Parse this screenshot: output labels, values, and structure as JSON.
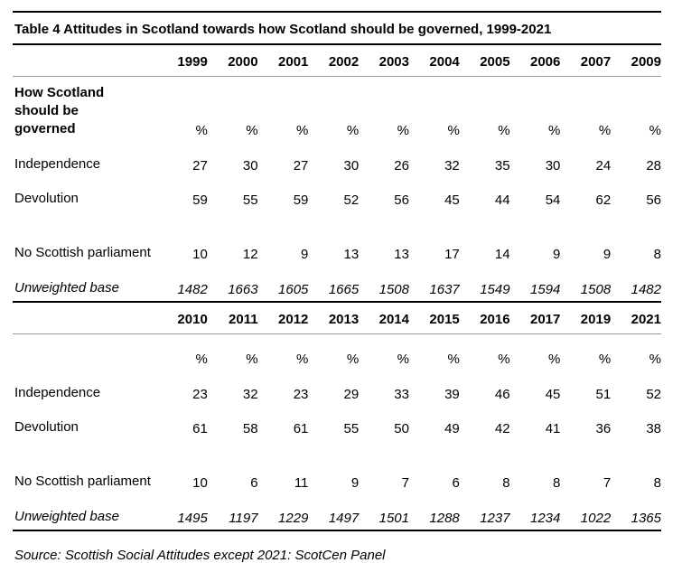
{
  "title": "Table 4 Attitudes in Scotland towards how Scotland should be governed, 1999-2021",
  "row_header_label": "How Scotland should be governed",
  "blocks": [
    {
      "years": [
        "1999",
        "2000",
        "2001",
        "2002",
        "2003",
        "2004",
        "2005",
        "2006",
        "2007",
        "2009"
      ],
      "percent_row": [
        "%",
        "%",
        "%",
        "%",
        "%",
        "%",
        "%",
        "%",
        "%",
        "%"
      ],
      "rows": [
        {
          "label": "Independence",
          "values": [
            "27",
            "30",
            "27",
            "30",
            "26",
            "32",
            "35",
            "30",
            "24",
            "28"
          ]
        },
        {
          "label": "Devolution",
          "values": [
            "59",
            "55",
            "59",
            "52",
            "56",
            "45",
            "44",
            "54",
            "62",
            "56"
          ]
        },
        {
          "label": "No Scottish parliament",
          "values": [
            "10",
            "12",
            "9",
            "13",
            "13",
            "17",
            "14",
            "9",
            "9",
            "8"
          ]
        }
      ],
      "base": {
        "label": "Unweighted base",
        "values": [
          "1482",
          "1663",
          "1605",
          "1665",
          "1508",
          "1637",
          "1549",
          "1594",
          "1508",
          "1482"
        ]
      }
    },
    {
      "years": [
        "2010",
        "2011",
        "2012",
        "2013",
        "2014",
        "2015",
        "2016",
        "2017",
        "2019",
        "2021"
      ],
      "percent_row": [
        "%",
        "%",
        "%",
        "%",
        "%",
        "%",
        "%",
        "%",
        "%",
        "%"
      ],
      "rows": [
        {
          "label": "Independence",
          "values": [
            "23",
            "32",
            "23",
            "29",
            "33",
            "39",
            "46",
            "45",
            "51",
            "52"
          ]
        },
        {
          "label": "Devolution",
          "values": [
            "61",
            "58",
            "61",
            "55",
            "50",
            "49",
            "42",
            "41",
            "36",
            "38"
          ]
        },
        {
          "label": "No Scottish parliament",
          "values": [
            "10",
            "6",
            "11",
            "9",
            "7",
            "6",
            "8",
            "8",
            "7",
            "8"
          ]
        }
      ],
      "base": {
        "label": "Unweighted base",
        "values": [
          "1495",
          "1197",
          "1229",
          "1497",
          "1501",
          "1288",
          "1237",
          "1234",
          "1022",
          "1365"
        ]
      }
    }
  ],
  "source": "Source: Scottish Social Attitudes except 2021: ScotCen Panel"
}
